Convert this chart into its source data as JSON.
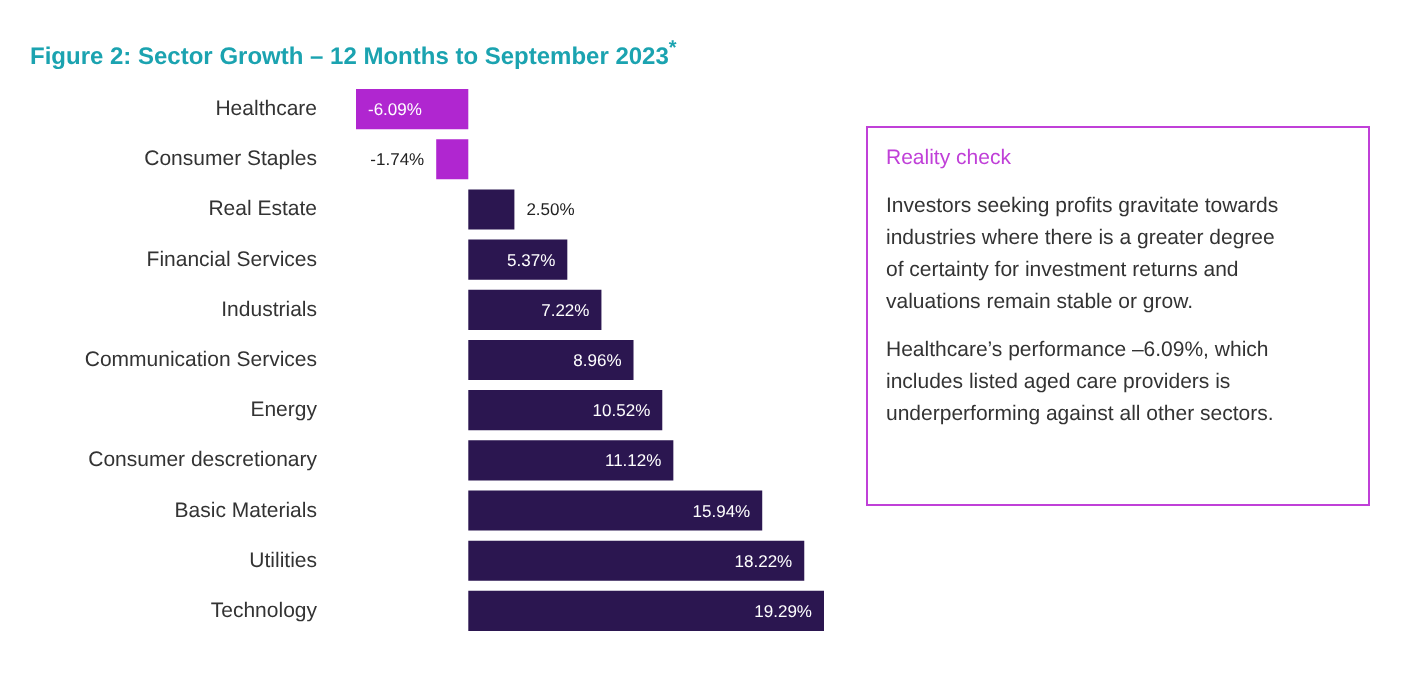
{
  "chart_data": [
    {
      "type": "bar",
      "orientation": "horizontal",
      "title": "Figure 2: Sector Growth – 12 Months to September 2023$^{*}$",
      "categories": [
        "Healthcare",
        "Consumer Staples",
        "Real Estate",
        "Financial Services",
        "Industrials",
        "Communication Services",
        "Energy",
        "Consumer descretionary",
        "Basic Materials",
        "Utilities",
        "Technology"
      ],
      "values": [
        -6.09,
        -1.74,
        2.5,
        5.37,
        7.22,
        8.96,
        10.52,
        11.12,
        15.94,
        18.22,
        19.29
      ],
      "value_labels": [
        "-6.09%",
        "-1.74%",
        "2.50%",
        "5.37%",
        "7.22%",
        "8.96%",
        "10.52%",
        "11.12%",
        "15.94%",
        "18.22%",
        "19.29%"
      ],
      "colors": [
        "#b026d0",
        "#b026d0",
        "#2b1650",
        "#2b1650",
        "#2b1650",
        "#2b1650",
        "#2b1650",
        "#2b1650",
        "#2b1650",
        "#2b1650",
        "#2b1650"
      ]
    },
    {
      "type": "other",
      "title": "Reality check",
      "color": "#c040d8",
      "annotations": [
        "Investors seeking profits gravitate towards industries where there is a greater degree of certainty for investment returns and valuations remain stable or grow.",
        "Healthcare’s performance –6.09%, which includes listed aged care providers is underperforming against all other sectors."
      ]
    }
  ]
}
